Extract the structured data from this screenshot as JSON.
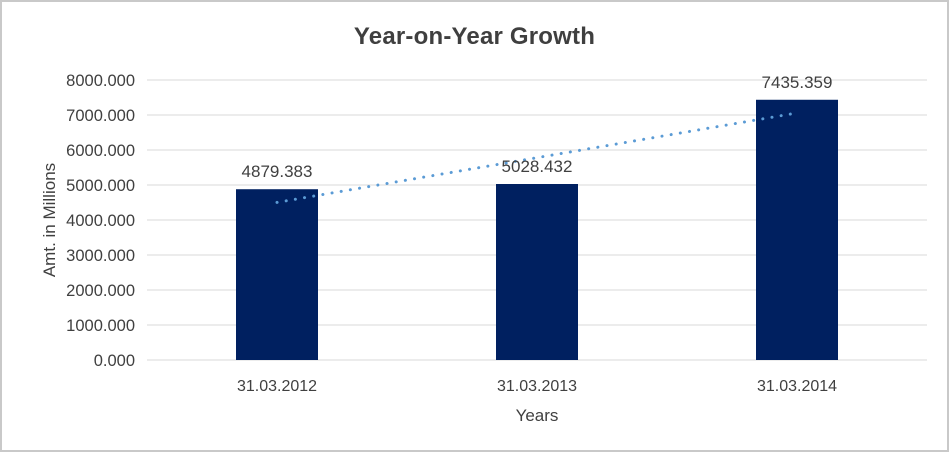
{
  "chart_data": {
    "type": "bar",
    "title": "Year-on-Year Growth",
    "categories": [
      "31.03.2012",
      "31.03.2013",
      "31.03.2014"
    ],
    "values": [
      4879.383,
      5028.432,
      7435.359
    ],
    "data_labels": [
      "4879.383",
      "5028.432",
      "7435.359"
    ],
    "xlabel": "Years",
    "ylabel": "Amt. in Millions",
    "ylim": [
      0,
      8000
    ],
    "ytick_step": 1000,
    "ytick_labels": [
      "0.000",
      "1000.000",
      "2000.000",
      "3000.000",
      "4000.000",
      "5000.000",
      "6000.000",
      "7000.000",
      "8000.000"
    ],
    "grid": true,
    "legend": "none",
    "trendline": {
      "type": "linear",
      "style": "dotted",
      "color": "#5b9bd5"
    },
    "colors": {
      "bar": "#002060",
      "gridline": "#d9d9d9",
      "text": "#404040",
      "title": "#3f3f3f",
      "frame_border": "#c9c9c9",
      "background": "#ffffff"
    }
  }
}
